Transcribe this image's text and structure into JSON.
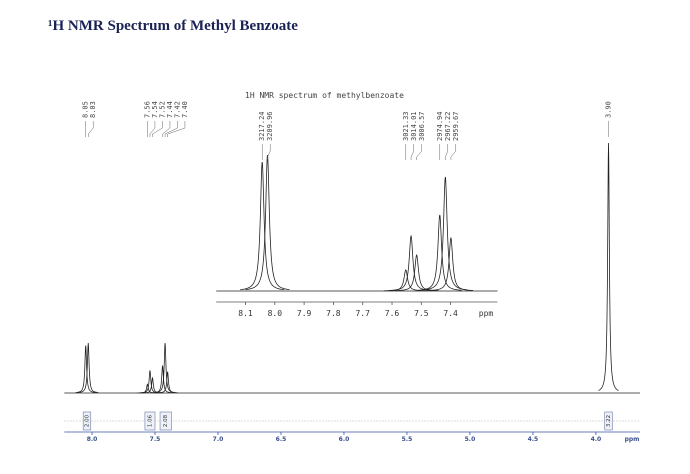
{
  "title": "¹H NMR Spectrum of Methyl Benzoate",
  "chart_data": [
    {
      "type": "spectrum",
      "x": [
        8.05,
        8.03,
        7.56,
        7.54,
        7.52,
        7.44,
        7.42,
        7.4,
        3.9
      ],
      "x_labels": [
        "8.05",
        "8.03",
        "7.56",
        "7.54",
        "7.52",
        "7.44",
        "7.42",
        "7.40",
        "3.90"
      ],
      "values": [
        19,
        20,
        3.5,
        9,
        6,
        11,
        20,
        8.5,
        100
      ],
      "xlim": [
        8.22,
        3.65
      ],
      "ylim": [
        0,
        100
      ],
      "xticks": [
        {
          "value": 8,
          "label": "8.0"
        },
        7.5,
        {
          "value": 7,
          "label": "7.0"
        },
        6.5,
        {
          "value": 6,
          "label": "6.0"
        },
        5.5,
        {
          "value": 5,
          "label": "5.0"
        },
        4.5,
        {
          "value": 4,
          "label": "4.0"
        }
      ],
      "xlabel": "ppm",
      "integrals": [
        {
          "value": 2,
          "label": "2.00",
          "from": 8.07,
          "to": 8.01
        },
        {
          "value": 1.06,
          "label": "1.06",
          "from": 7.58,
          "to": 7.5
        },
        {
          "value": 2.08,
          "label": "2.08",
          "from": 7.46,
          "to": 7.37
        },
        {
          "value": 3.22,
          "label": "3.22",
          "from": 3.93,
          "to": 3.87
        }
      ],
      "color": "#222222"
    },
    {
      "type": "spectrum",
      "title": "1H NMR spectrum of methylbenzoate",
      "x": [
        8.043,
        8.025,
        7.553,
        7.535,
        7.516,
        7.437,
        7.418,
        7.399
      ],
      "hz": [
        3217.24,
        3209.96,
        3021.33,
        3014.01,
        3006.57,
        2974.94,
        2967.22,
        2959.67
      ],
      "values": [
        129,
        136,
        21,
        55,
        36,
        76,
        114,
        53
      ],
      "xlim": [
        8.2,
        7.24
      ],
      "ylim": [
        0,
        140
      ],
      "xticks": [
        8.1,
        {
          "value": 8,
          "label": "8.0"
        },
        7.9,
        7.8,
        7.7,
        7.6,
        7.5,
        7.4
      ],
      "xlabel": "ppm",
      "color": "#222222"
    }
  ]
}
